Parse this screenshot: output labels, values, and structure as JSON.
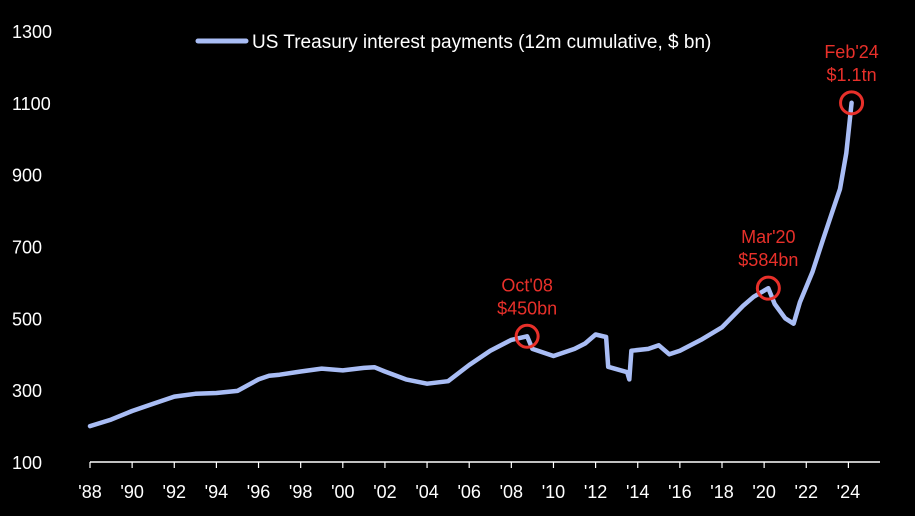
{
  "chart_data": {
    "type": "line",
    "title": "",
    "xlabel": "",
    "ylabel": "",
    "xlim": [
      1988,
      2025.5
    ],
    "ylim": [
      100,
      1300
    ],
    "y_ticks": [
      100,
      300,
      500,
      700,
      900,
      1100,
      1300
    ],
    "y_tick_labels": [
      "100",
      "300",
      "500",
      "700",
      "900",
      "1100",
      "1300"
    ],
    "x_ticks": [
      1988,
      1990,
      1992,
      1994,
      1996,
      1998,
      2000,
      2002,
      2004,
      2006,
      2008,
      2010,
      2012,
      2014,
      2016,
      2018,
      2020,
      2022,
      2024
    ],
    "x_tick_labels": [
      "'88",
      "'90",
      "'92",
      "'94",
      "'96",
      "'98",
      "'00",
      "'02",
      "'04",
      "'06",
      "'08",
      "'10",
      "'12",
      "'14",
      "'16",
      "'18",
      "'20",
      "'22",
      "'24"
    ],
    "grid": false,
    "legend_position": "top-center",
    "series": [
      {
        "name": "US Treasury interest payments (12m cumulative, $ bn)",
        "color": "#a9bdf5",
        "points": [
          [
            1988.0,
            200
          ],
          [
            1989.0,
            218
          ],
          [
            1990.0,
            242
          ],
          [
            1991.0,
            262
          ],
          [
            1992.0,
            282
          ],
          [
            1993.0,
            290
          ],
          [
            1994.0,
            292
          ],
          [
            1995.0,
            298
          ],
          [
            1996.0,
            330
          ],
          [
            1996.5,
            340
          ],
          [
            1997.0,
            343
          ],
          [
            1998.0,
            352
          ],
          [
            1999.0,
            360
          ],
          [
            2000.0,
            355
          ],
          [
            2001.0,
            362
          ],
          [
            2001.5,
            364
          ],
          [
            2002.0,
            352
          ],
          [
            2003.0,
            330
          ],
          [
            2004.0,
            318
          ],
          [
            2005.0,
            325
          ],
          [
            2006.0,
            370
          ],
          [
            2007.0,
            410
          ],
          [
            2008.0,
            440
          ],
          [
            2008.75,
            450
          ],
          [
            2009.0,
            415
          ],
          [
            2010.0,
            395
          ],
          [
            2011.0,
            415
          ],
          [
            2011.5,
            430
          ],
          [
            2012.0,
            455
          ],
          [
            2012.5,
            448
          ],
          [
            2012.6,
            365
          ],
          [
            2013.5,
            350
          ],
          [
            2013.6,
            330
          ],
          [
            2013.7,
            410
          ],
          [
            2014.5,
            415
          ],
          [
            2015.0,
            425
          ],
          [
            2015.5,
            400
          ],
          [
            2016.0,
            410
          ],
          [
            2017.0,
            440
          ],
          [
            2018.0,
            475
          ],
          [
            2019.0,
            535
          ],
          [
            2019.5,
            560
          ],
          [
            2020.2,
            584
          ],
          [
            2020.5,
            540
          ],
          [
            2021.0,
            500
          ],
          [
            2021.4,
            485
          ],
          [
            2021.7,
            545
          ],
          [
            2022.3,
            630
          ],
          [
            2022.8,
            720
          ],
          [
            2023.2,
            790
          ],
          [
            2023.6,
            860
          ],
          [
            2023.9,
            960
          ],
          [
            2024.15,
            1100
          ]
        ]
      }
    ],
    "annotations": [
      {
        "label_line1": "Oct'08",
        "label_line2": "$450bn",
        "x": 2008.75,
        "y": 450,
        "color": "#e8302a"
      },
      {
        "label_line1": "Mar'20",
        "label_line2": "$584bn",
        "x": 2020.2,
        "y": 584,
        "color": "#e8302a"
      },
      {
        "label_line1": "Feb'24",
        "label_line2": "$1.1tn",
        "x": 2024.15,
        "y": 1100,
        "color": "#e8302a"
      }
    ]
  }
}
